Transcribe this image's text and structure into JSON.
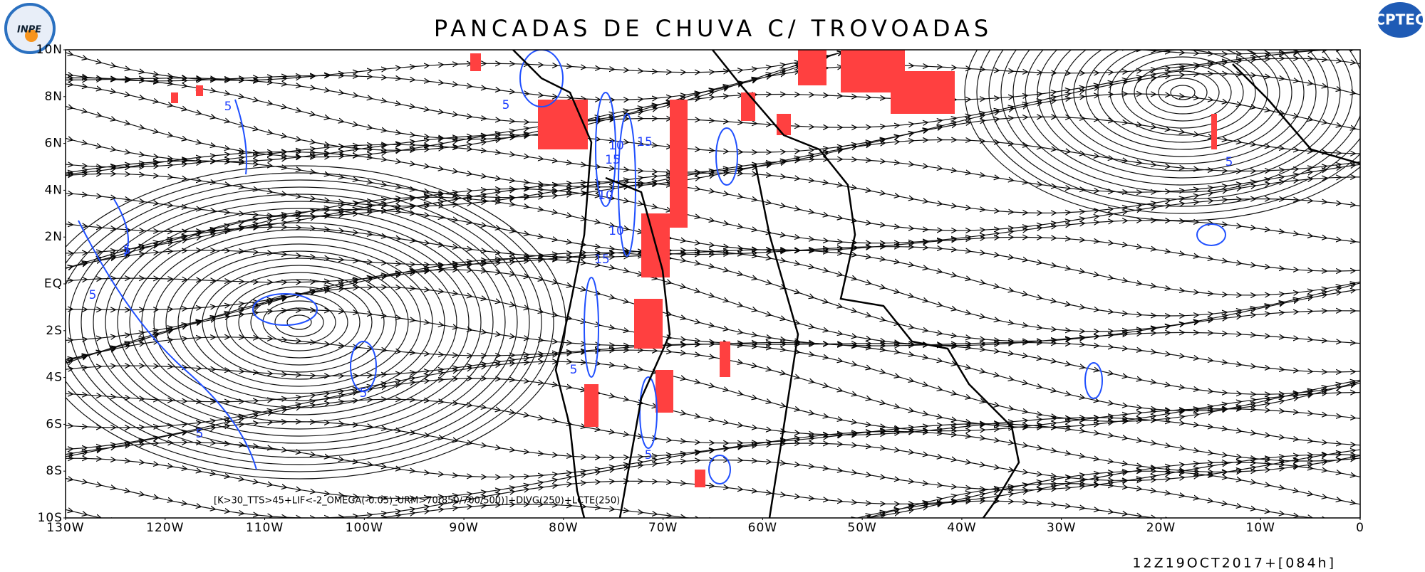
{
  "header": {
    "title": "PANCADAS DE CHUVA C/ TROVOADAS",
    "logo_left": "INPE",
    "logo_right": "CPTEC"
  },
  "axes": {
    "y_labels": [
      "10N",
      "8N",
      "6N",
      "4N",
      "2N",
      "EQ",
      "2S",
      "4S",
      "6S",
      "8S",
      "10S"
    ],
    "x_labels": [
      "130W",
      "120W",
      "110W",
      "100W",
      "90W",
      "80W",
      "70W",
      "60W",
      "50W",
      "40W",
      "30W",
      "20W",
      "10W",
      "0"
    ]
  },
  "contour_labels": [
    "5",
    "5",
    "5",
    "5",
    "5",
    "10",
    "15",
    "15",
    "10",
    "15",
    "10",
    "5",
    "5",
    "5",
    "5"
  ],
  "footer": {
    "formula": "[K>30_TTS>45+LIF<-2_OMEGA(-0.05)_URM>70(850/700/500)]+DIVG(250)+LCTE(250)",
    "timestamp": "12Z19OCT2017+[084h]"
  }
}
